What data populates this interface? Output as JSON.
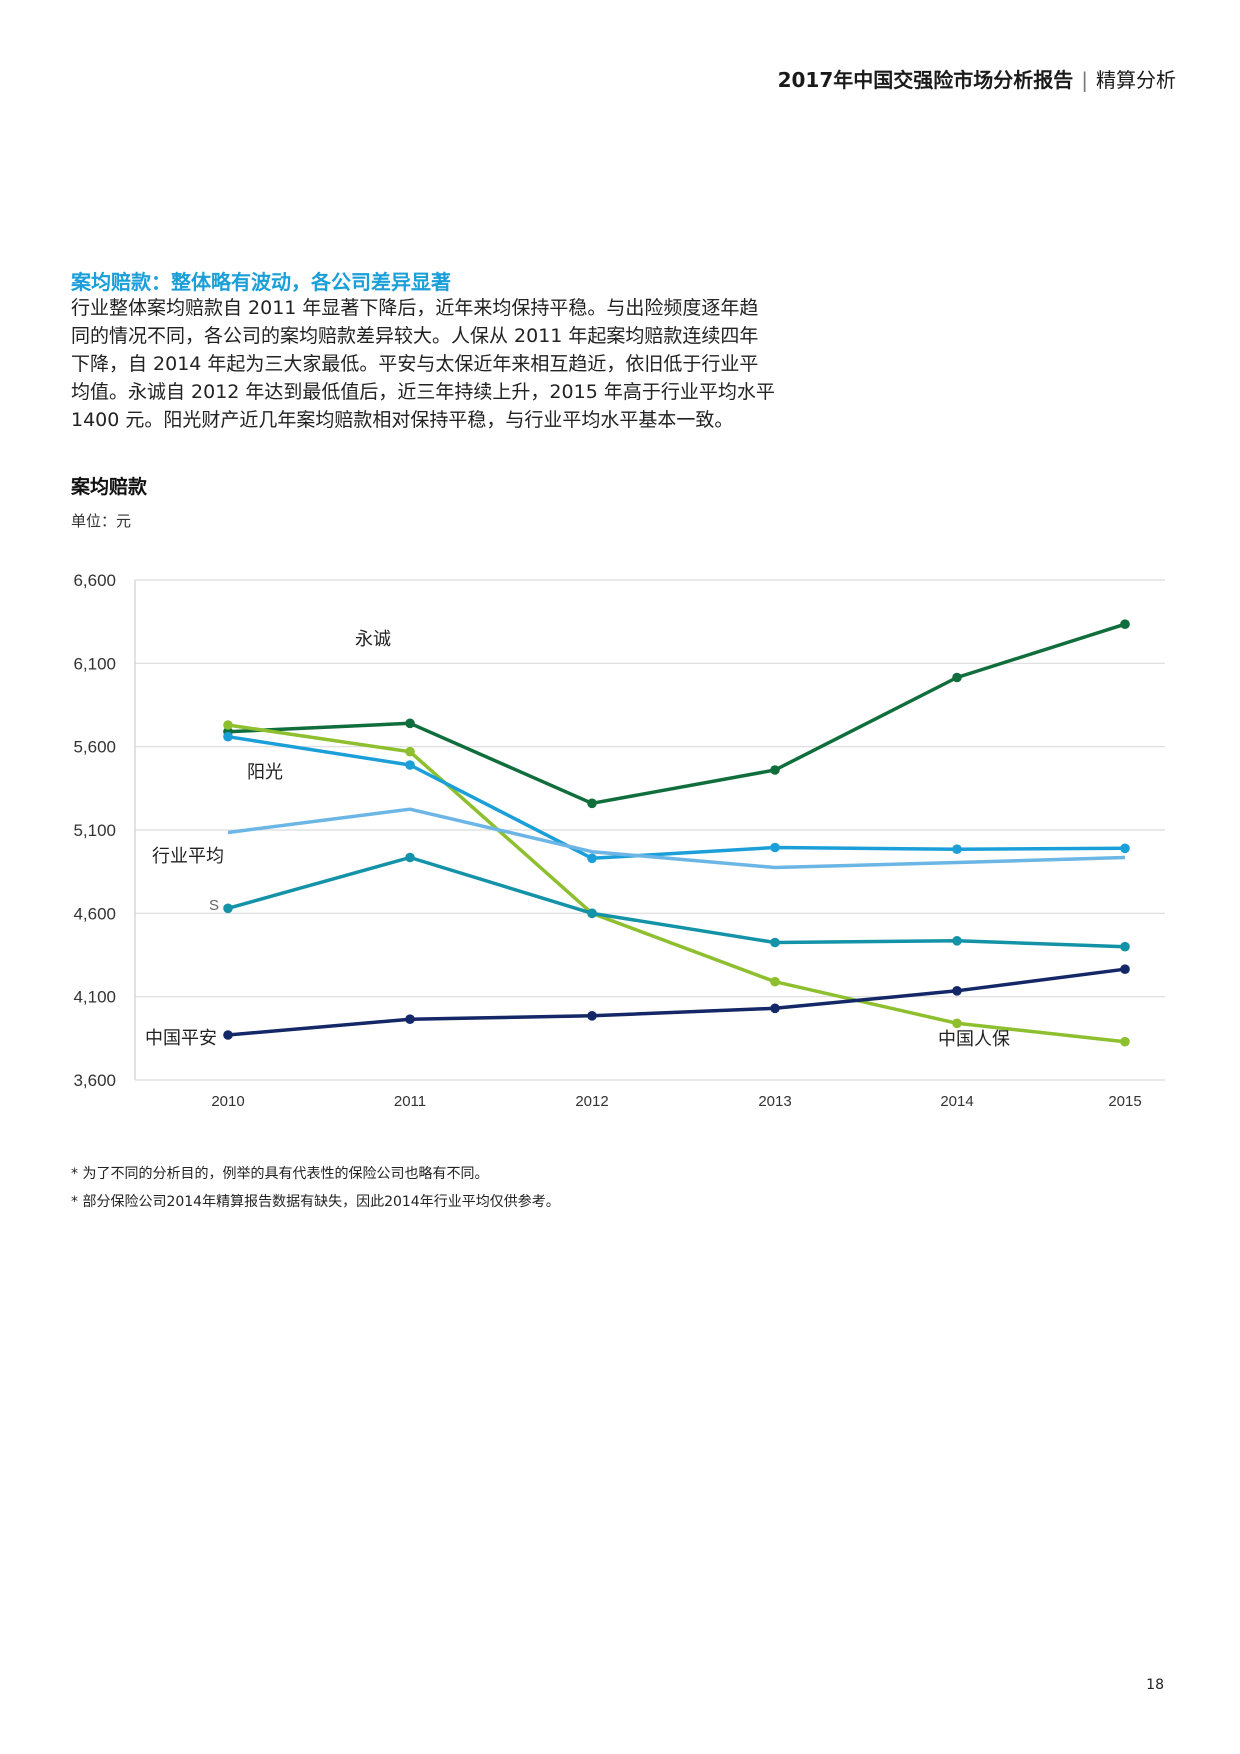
{
  "header": {
    "report_title": "2017年中国交强险市场分析报告",
    "separator": "|",
    "section": "精算分析"
  },
  "section_title": "案均赔款：整体略有波动，各公司差异显著",
  "body_lines": [
    "行业整体案均赔款自 2011 年显著下降后，近年来均保持平稳。与出险频度逐年趋",
    "同的情况不同，各公司的案均赔款差异较大。人保从 2011 年起案均赔款连续四年",
    "下降，自 2014 年起为三大家最低。平安与太保近年来相互趋近，依旧低于行业平",
    "均值。永诚自 2012 年达到最低值后，近三年持续上升，2015 年高于行业平均水平",
    "1400 元。阳光财产近几年案均赔款相对保持平稳，与行业平均水平基本一致。"
  ],
  "chart_heading": "案均赔款",
  "unit_label": "单位：元",
  "chart_data": {
    "type": "line",
    "x": [
      "2010",
      "2011",
      "2012",
      "2013",
      "2014",
      "2015"
    ],
    "ylim": [
      3600,
      6600
    ],
    "yticks": [
      3600,
      4100,
      4600,
      5100,
      5600,
      6100,
      6600
    ],
    "ytick_labels": [
      "3,600",
      "4,100",
      "4,600",
      "5,100",
      "5,600",
      "6,100",
      "6,600"
    ],
    "grid": true,
    "series": [
      {
        "name": "永诚",
        "color": "#0f6e3b",
        "markers": true,
        "values": [
          5690,
          5740,
          5260,
          5460,
          6015,
          6335
        ]
      },
      {
        "name": "",
        "color": "#8dbf2e",
        "markers": true,
        "values": [
          5730,
          5570,
          4600,
          4190,
          3940,
          3830
        ]
      },
      {
        "name": "阳光",
        "color": "#1a9fd8",
        "markers": true,
        "values": [
          5660,
          5490,
          4930,
          4995,
          4985,
          4990
        ]
      },
      {
        "name": "行业平均",
        "color": "#6cb6e6",
        "markers": false,
        "values": [
          5085,
          5225,
          4970,
          4875,
          4905,
          4935
        ]
      },
      {
        "name": "S",
        "color": "#1493a8",
        "markers": true,
        "values": [
          4630,
          4935,
          4600,
          4425,
          4435,
          4400
        ]
      },
      {
        "name": "中国平安",
        "color": "#142766",
        "markers": true,
        "values": [
          3870,
          3965,
          3985,
          4030,
          4135,
          4265
        ]
      }
    ],
    "annotations": [
      {
        "text": "永诚"
      },
      {
        "text": "阳光"
      },
      {
        "text": "行业平均"
      },
      {
        "text": "S"
      },
      {
        "text": "中国平安"
      },
      {
        "text": "中国人保"
      }
    ]
  },
  "notes": [
    "* 为了不同的分析目的，例举的具有代表性的保险公司也略有不同。",
    "* 部分保险公司2014年精算报告数据有缺失，因此2014年行业平均仅供参考。"
  ],
  "page_number": "18"
}
